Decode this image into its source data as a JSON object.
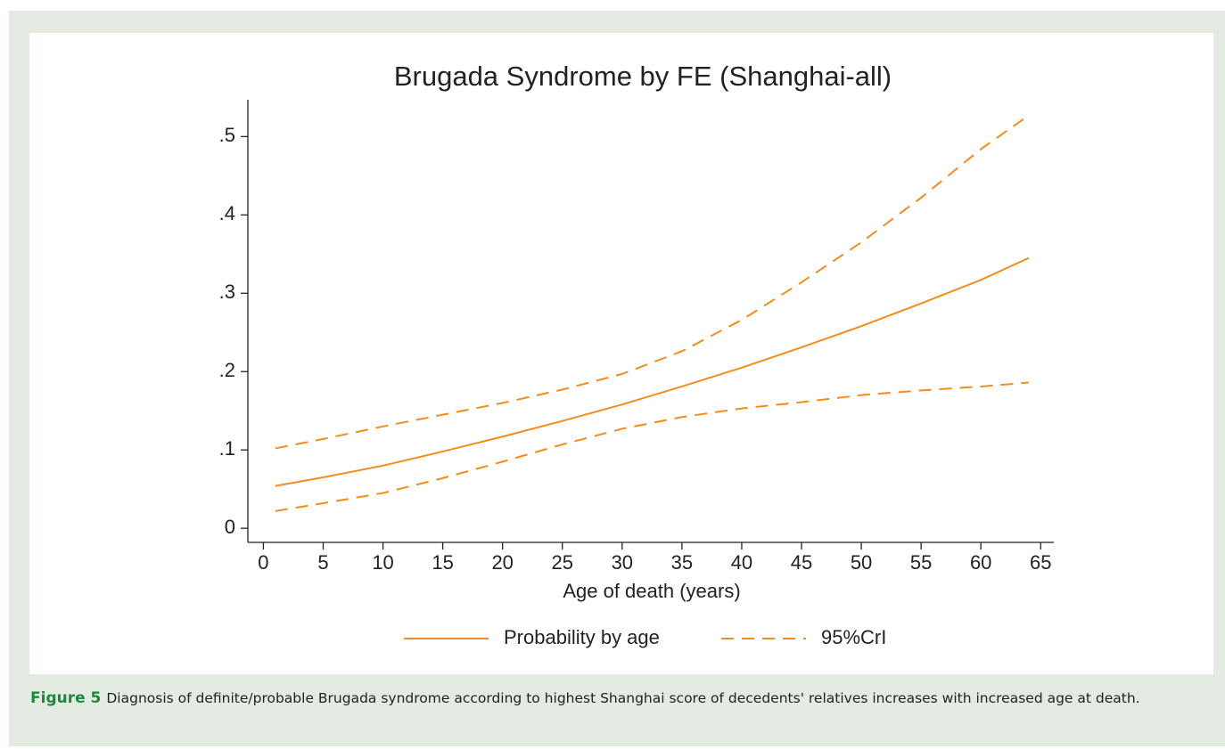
{
  "chart_data": {
    "type": "line",
    "title": "Brugada Syndrome by FE (Shanghai-all)",
    "xlabel": "Age of death (years)",
    "x": [
      1,
      5,
      10,
      15,
      20,
      25,
      30,
      35,
      40,
      45,
      50,
      55,
      60,
      64
    ],
    "series": [
      {
        "name": "Probability by age",
        "color": "#f28c1e",
        "dash": false,
        "values": [
          0.054,
          0.065,
          0.08,
          0.098,
          0.117,
          0.137,
          0.158,
          0.181,
          0.205,
          0.231,
          0.258,
          0.287,
          0.317,
          0.345
        ]
      },
      {
        "name": "95%CrI",
        "color": "#f28c1e",
        "dash": true,
        "upper": [
          0.102,
          0.114,
          0.13,
          0.145,
          0.16,
          0.177,
          0.197,
          0.226,
          0.266,
          0.314,
          0.365,
          0.422,
          0.484,
          0.527
        ],
        "lower": [
          0.022,
          0.032,
          0.045,
          0.064,
          0.085,
          0.107,
          0.127,
          0.142,
          0.153,
          0.161,
          0.17,
          0.176,
          0.181,
          0.186
        ]
      }
    ],
    "xlim": [
      -1.3,
      66.1
    ],
    "ylim": [
      -0.018,
      0.547
    ],
    "xticks": [
      0,
      5,
      10,
      15,
      20,
      25,
      30,
      35,
      40,
      45,
      50,
      55,
      60,
      65
    ],
    "yticks": [
      0,
      {
        "value": 0.1,
        "label": ".1"
      },
      {
        "value": 0.2,
        "label": ".2"
      },
      {
        "value": 0.3,
        "label": ".3"
      },
      {
        "value": 0.4,
        "label": ".4"
      },
      {
        "value": 0.5,
        "label": ".5"
      }
    ],
    "legend": "bottom"
  },
  "figure": {
    "label": "Figure 5",
    "caption": "Diagnosis of definite/probable Brugada syndrome according to highest Shanghai score of decedents' relatives increases with increased age at death."
  }
}
